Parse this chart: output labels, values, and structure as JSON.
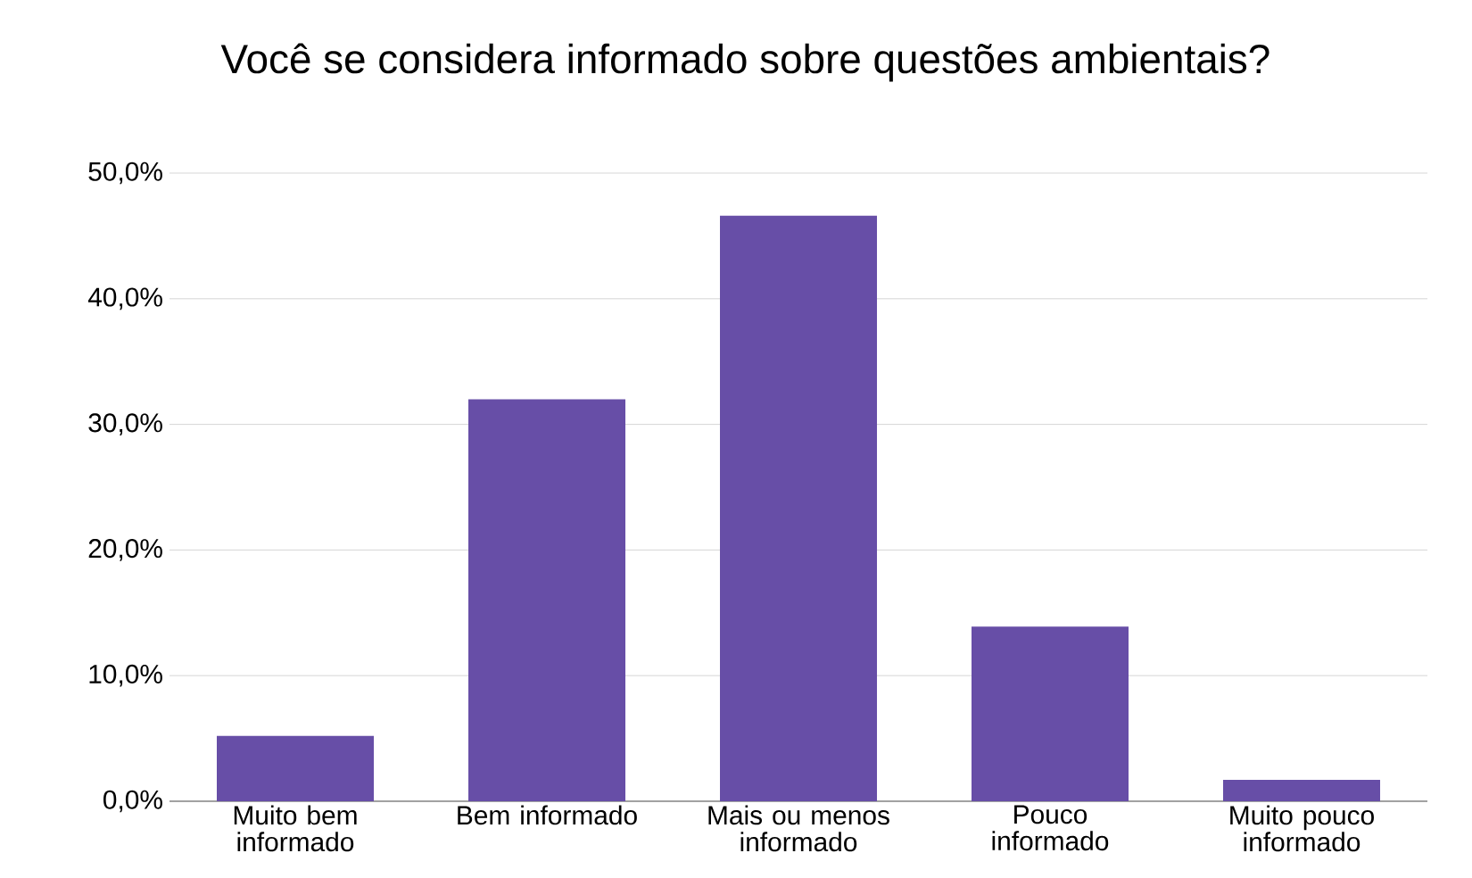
{
  "chart_data": {
    "type": "bar",
    "title": "Você se considera informado sobre questões ambientais?",
    "categories": [
      "Muito bem informado",
      "Bem informado",
      "Mais ou menos informado",
      "Pouco informado",
      "Muito pouco informado"
    ],
    "values": [
      5.2,
      32.0,
      46.6,
      13.9,
      1.7
    ],
    "color": "#674ea7",
    "ylim": [
      0,
      50
    ],
    "yticks": [
      {
        "value": 0,
        "label": "0,0%"
      },
      {
        "value": 10,
        "label": "10,0%"
      },
      {
        "value": 20,
        "label": "20,0%"
      },
      {
        "value": 30,
        "label": "30,0%"
      },
      {
        "value": 40,
        "label": "40,0%"
      },
      {
        "value": 50,
        "label": "50,0%"
      }
    ],
    "grid": "y"
  }
}
